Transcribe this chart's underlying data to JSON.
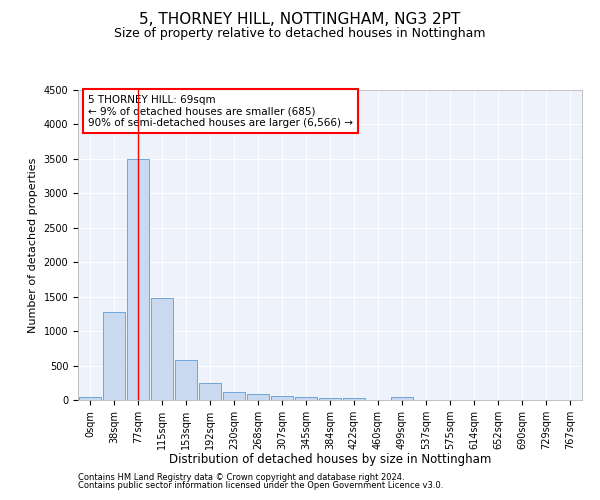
{
  "title": "5, THORNEY HILL, NOTTINGHAM, NG3 2PT",
  "subtitle": "Size of property relative to detached houses in Nottingham",
  "xlabel": "Distribution of detached houses by size in Nottingham",
  "ylabel": "Number of detached properties",
  "bar_labels": [
    "0sqm",
    "38sqm",
    "77sqm",
    "115sqm",
    "153sqm",
    "192sqm",
    "230sqm",
    "268sqm",
    "307sqm",
    "345sqm",
    "384sqm",
    "422sqm",
    "460sqm",
    "499sqm",
    "537sqm",
    "575sqm",
    "614sqm",
    "652sqm",
    "690sqm",
    "729sqm",
    "767sqm"
  ],
  "bar_heights": [
    50,
    1280,
    3500,
    1480,
    580,
    240,
    120,
    90,
    60,
    40,
    35,
    35,
    0,
    50,
    0,
    0,
    0,
    0,
    0,
    0,
    0
  ],
  "bar_color": "#c9d9f0",
  "bar_edge_color": "#5b9bd5",
  "red_line_index": 2,
  "annotation_line1": "5 THORNEY HILL: 69sqm",
  "annotation_line2": "← 9% of detached houses are smaller (685)",
  "annotation_line3": "90% of semi-detached houses are larger (6,566) →",
  "ylim": [
    0,
    4500
  ],
  "yticks": [
    0,
    500,
    1000,
    1500,
    2000,
    2500,
    3000,
    3500,
    4000,
    4500
  ],
  "footnote1": "Contains HM Land Registry data © Crown copyright and database right 2024.",
  "footnote2": "Contains public sector information licensed under the Open Government Licence v3.0.",
  "background_color": "#eef2fb",
  "grid_color": "#ffffff",
  "title_fontsize": 11,
  "subtitle_fontsize": 9,
  "tick_fontsize": 7,
  "ylabel_fontsize": 8,
  "xlabel_fontsize": 8.5,
  "annotation_fontsize": 7.5,
  "footnote_fontsize": 6
}
